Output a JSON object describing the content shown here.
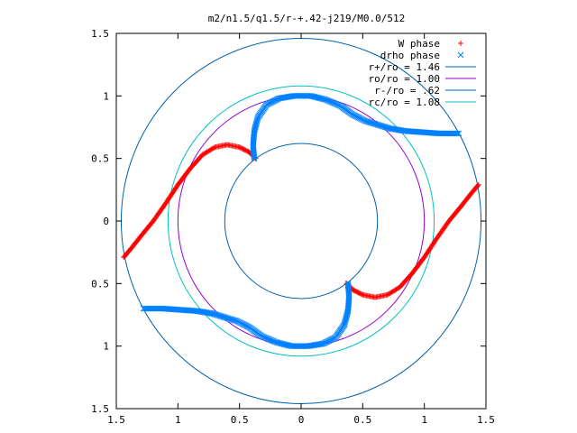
{
  "chart_data": {
    "type": "scatter",
    "title": "m2/n1.5/q1.5/r-+.42-j219/M0.0/512",
    "xlabel": "",
    "ylabel": "",
    "xlim": [
      -1.5,
      1.5
    ],
    "ylim": [
      -1.5,
      1.5
    ],
    "x_tick_labels": [
      "1.5",
      "1",
      "0.5",
      "0",
      "0.5",
      "1",
      "1.5"
    ],
    "y_tick_labels": [
      "1.5",
      "1",
      "0.5",
      "0",
      "0.5",
      "1",
      "1.5"
    ],
    "grid": false,
    "legend_position": "top-right",
    "series": [
      {
        "name": "W phase",
        "marker": "plus",
        "color": "#ff0000",
        "branches": [
          {
            "x": [
              -1.44,
              -1.38,
              -1.3,
              -1.2,
              -1.1,
              -1.0,
              -0.9,
              -0.8,
              -0.7,
              -0.6,
              -0.5,
              -0.42,
              -0.37
            ],
            "y": [
              -0.29,
              -0.22,
              -0.12,
              0.0,
              0.14,
              0.29,
              0.42,
              0.53,
              0.59,
              0.61,
              0.59,
              0.55,
              0.5
            ]
          },
          {
            "x": [
              1.44,
              1.38,
              1.3,
              1.2,
              1.1,
              1.0,
              0.9,
              0.8,
              0.7,
              0.6,
              0.5,
              0.42,
              0.37
            ],
            "y": [
              0.29,
              0.22,
              0.12,
              0.0,
              -0.14,
              -0.29,
              -0.42,
              -0.53,
              -0.59,
              -0.61,
              -0.59,
              -0.55,
              -0.5
            ]
          }
        ]
      },
      {
        "name": "drho phase",
        "marker": "cross",
        "color": "#0080ff",
        "branches": [
          {
            "x": [
              -0.38,
              -0.39,
              -0.38,
              -0.35,
              -0.28,
              -0.18,
              -0.06,
              0.08,
              0.2,
              0.32,
              0.42,
              0.52,
              0.62,
              0.72,
              0.84,
              0.98,
              1.12,
              1.28
            ],
            "y": [
              0.5,
              0.6,
              0.72,
              0.83,
              0.93,
              0.98,
              1.0,
              1.0,
              0.97,
              0.92,
              0.85,
              0.8,
              0.77,
              0.74,
              0.72,
              0.71,
              0.7,
              0.7
            ]
          },
          {
            "x": [
              0.38,
              0.39,
              0.38,
              0.35,
              0.28,
              0.18,
              0.06,
              -0.08,
              -0.2,
              -0.32,
              -0.42,
              -0.52,
              -0.62,
              -0.72,
              -0.84,
              -0.98,
              -1.12,
              -1.28
            ],
            "y": [
              -0.5,
              -0.6,
              -0.72,
              -0.83,
              -0.93,
              -0.98,
              -1.0,
              -1.0,
              -0.97,
              -0.92,
              -0.85,
              -0.8,
              -0.77,
              -0.74,
              -0.72,
              -0.71,
              -0.7,
              -0.7
            ]
          }
        ]
      },
      {
        "name": "r+/ro = 1.46",
        "marker": "line",
        "color": "#0060ad",
        "radius": 1.46
      },
      {
        "name": "ro/ro = 1.00",
        "marker": "line",
        "color": "#9400d3",
        "radius": 1.0
      },
      {
        "name": "r-/ro = .62",
        "marker": "line",
        "color": "#0060ad",
        "radius": 0.62
      },
      {
        "name": "rc/ro = 1.08",
        "marker": "line",
        "color": "#00c0c0",
        "radius": 1.08
      }
    ]
  }
}
